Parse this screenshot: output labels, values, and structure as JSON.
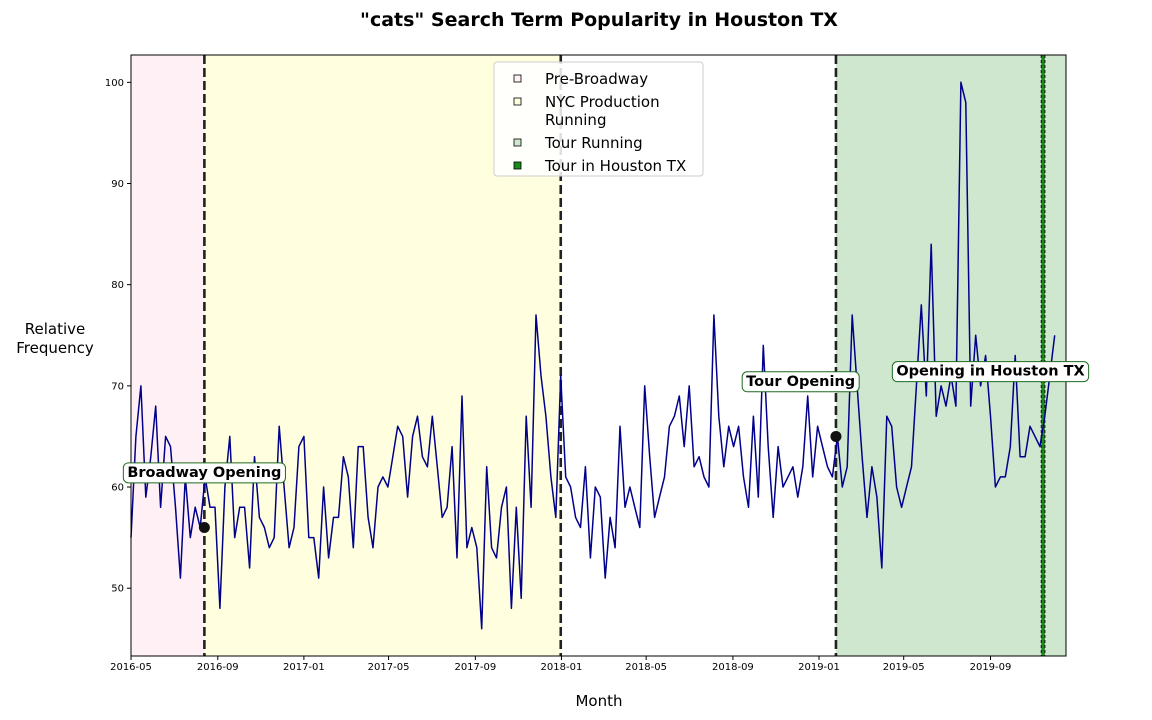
{
  "chart_data": {
    "type": "line",
    "title": "\"cats\" Search Term Popularity in Houston TX",
    "xlabel": "Month",
    "ylabel": "Relative\nFrequency",
    "x_range": [
      "2016-05-01",
      "2019-12-17"
    ],
    "ylim": [
      43.3,
      102.7
    ],
    "x_ticks": [
      "2016-05",
      "2016-09",
      "2017-01",
      "2017-05",
      "2017-09",
      "2018-01",
      "2018-05",
      "2018-09",
      "2019-01",
      "2019-05",
      "2019-09"
    ],
    "y_ticks": [
      50,
      60,
      70,
      80,
      90,
      100
    ],
    "grid": false,
    "line_color": "#00008b",
    "phases": [
      {
        "name": "Pre-Broadway",
        "start": "2016-05-01",
        "end": "2016-08-13",
        "color": "#fff0f5"
      },
      {
        "name": "NYC Production\nRunning",
        "start": "2016-08-13",
        "end": "2017-12-31",
        "color": "#ffffe0"
      },
      {
        "name": "Tour Running",
        "start": "2019-01-25",
        "end": "2019-12-17",
        "color": "#cfe6cf"
      },
      {
        "name": "Tour in Houston TX",
        "start": "2019-11-12",
        "end": "2019-11-17",
        "color": "#1a8a1a"
      }
    ],
    "vlines": [
      "2016-08-13",
      "2017-12-31",
      "2019-01-25",
      "2019-11-12",
      "2019-11-17"
    ],
    "legend_location": "top-center",
    "annotations": [
      {
        "text": "Broadway Opening",
        "marker_x": "2016-08-13",
        "marker_y": 56,
        "label_x": "2016-08-13",
        "label_y": 61.5
      },
      {
        "text": "Tour Opening",
        "marker_x": "2019-01-25",
        "marker_y": 65,
        "label_x": "2018-12-06",
        "label_y": 70.5
      },
      {
        "text": "Opening in Houston TX",
        "marker_x": "2019-11-12",
        "marker_y": null,
        "label_x": "2019-09-01",
        "label_y": 71.5
      }
    ],
    "series": [
      {
        "start": "2016-05-01",
        "interval_days": 7,
        "values": [
          55,
          65,
          70,
          59,
          63,
          68,
          58,
          65,
          64,
          58,
          51,
          61,
          55,
          58,
          56,
          61,
          58,
          58,
          48,
          60,
          65,
          55,
          58,
          58,
          52,
          63,
          57,
          56,
          54,
          55,
          66,
          60,
          54,
          56,
          64,
          65,
          55,
          55,
          51,
          60,
          53,
          57,
          57,
          63,
          61,
          54,
          64,
          64,
          57,
          54,
          60,
          61,
          60,
          63,
          66,
          65,
          59,
          65,
          67,
          63,
          62,
          67,
          62,
          57,
          58,
          64,
          53,
          69,
          54,
          56,
          54,
          46,
          62,
          54,
          53,
          58,
          60,
          48,
          58,
          49,
          67,
          58,
          77,
          71,
          67,
          61,
          57,
          71,
          61,
          60,
          57,
          56,
          62,
          53,
          60,
          59,
          51,
          57,
          54,
          66,
          58,
          60,
          58,
          56,
          70,
          63,
          57,
          59,
          61,
          66,
          67,
          69,
          64,
          70,
          62,
          63,
          61,
          60,
          77,
          67,
          62,
          66,
          64,
          66,
          61,
          58,
          67,
          59,
          74,
          64,
          57,
          64,
          60,
          61,
          62,
          59,
          62,
          69,
          61,
          66,
          64,
          62,
          61,
          65,
          60,
          62,
          77,
          70,
          63,
          57,
          62,
          59,
          52,
          67,
          66,
          60,
          58,
          60,
          62,
          70,
          78,
          69,
          84,
          67,
          70,
          68,
          71,
          68,
          100,
          98,
          68,
          75,
          70,
          73,
          67,
          60,
          61,
          61,
          64,
          73,
          63,
          63,
          66,
          65,
          64,
          67,
          71,
          75
        ]
      }
    ]
  }
}
